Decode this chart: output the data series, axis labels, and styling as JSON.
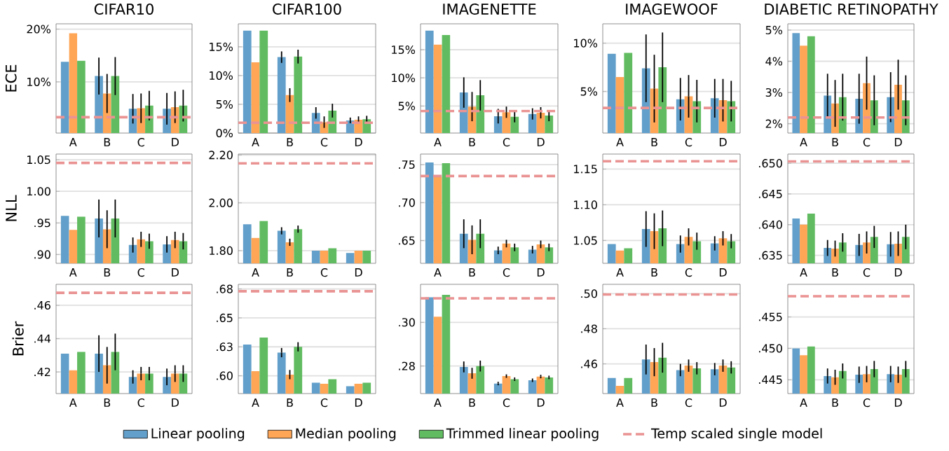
{
  "chart_data": [
    {
      "type": "bar",
      "title": "CIFAR10",
      "ylabel": "ECE",
      "categories": [
        "A",
        "B",
        "C",
        "D"
      ],
      "ylim": [
        0.3,
        21
      ],
      "yticks": [
        {
          "value": 10,
          "label": "10%"
        },
        {
          "value": 20,
          "label": "20%"
        }
      ],
      "grid": "y",
      "legend": "bottom",
      "ref_lines": [
        {
          "axis": "y",
          "value": 3.3,
          "label": "Temp scaled single model",
          "color": "#ea9393",
          "line_style": "dashed"
        }
      ],
      "series": [
        {
          "name": "Linear pooling",
          "color": "#629fca",
          "values": [
            13.8,
            11.1,
            4.9,
            4.9
          ],
          "errors": [
            null,
            3.5,
            2.8,
            3.0
          ]
        },
        {
          "name": "Median pooling",
          "color": "#ffa556",
          "values": [
            19.2,
            7.8,
            5.0,
            5.2
          ],
          "errors": [
            null,
            3.7,
            2.8,
            3.0
          ]
        },
        {
          "name": "Trimmed linear pooling",
          "color": "#61bc61",
          "values": [
            14.0,
            11.1,
            5.5,
            5.5
          ],
          "errors": [
            null,
            3.6,
            2.8,
            3.0
          ]
        }
      ]
    },
    {
      "type": "bar",
      "title": "CIFAR100",
      "categories": [
        "A",
        "B",
        "C",
        "D"
      ],
      "ylim": [
        0,
        19
      ],
      "yticks": [
        {
          "value": 0,
          "label": "0%"
        },
        {
          "value": 5,
          "label": "5%"
        },
        {
          "value": 10,
          "label": "10%"
        },
        {
          "value": 15,
          "label": "15%"
        }
      ],
      "grid": "y",
      "ref_lines": [
        {
          "axis": "y",
          "value": 1.8,
          "color": "#ea9393",
          "line_style": "dashed"
        }
      ],
      "series": [
        {
          "color": "#629fca",
          "values": [
            17.8,
            13.2,
            3.5,
            2.2
          ],
          "errors": [
            null,
            1.0,
            1.0,
            0.5
          ]
        },
        {
          "color": "#ffa556",
          "values": [
            12.3,
            6.6,
            1.9,
            2.3
          ],
          "errors": [
            null,
            1.2,
            1.0,
            0.6
          ]
        },
        {
          "color": "#61bc61",
          "values": [
            17.8,
            13.3,
            3.9,
            2.4
          ],
          "errors": [
            null,
            1.2,
            1.2,
            0.6
          ]
        }
      ]
    },
    {
      "type": "bar",
      "title": "IMAGENETTE",
      "categories": [
        "A",
        "B",
        "C",
        "D"
      ],
      "ylim": [
        0.2,
        19.6
      ],
      "yticks": [
        {
          "value": 5,
          "label": "5%"
        },
        {
          "value": 10,
          "label": "10%"
        },
        {
          "value": 15,
          "label": "15%"
        }
      ],
      "grid": "y",
      "ref_lines": [
        {
          "axis": "y",
          "value": 4.1,
          "color": "#ea9393",
          "line_style": "dashed"
        }
      ],
      "series": [
        {
          "color": "#629fca",
          "values": [
            18.4,
            7.4,
            3.2,
            3.6
          ],
          "errors": [
            null,
            2.7,
            1.3,
            1.0
          ]
        },
        {
          "color": "#ffa556",
          "values": [
            15.9,
            4.9,
            3.9,
            3.8
          ],
          "errors": [
            null,
            2.6,
            1.0,
            1.0
          ]
        },
        {
          "color": "#61bc61",
          "values": [
            17.6,
            6.9,
            3.1,
            3.3
          ],
          "errors": [
            null,
            2.7,
            1.0,
            1.0
          ]
        }
      ]
    },
    {
      "type": "bar",
      "title": "IMAGEWOOF",
      "categories": [
        "A",
        "B",
        "C",
        "D"
      ],
      "ylim": [
        0.7,
        12
      ],
      "yticks": [
        {
          "value": 5,
          "label": "5%"
        },
        {
          "value": 10,
          "label": "10%"
        }
      ],
      "grid": "y",
      "ref_lines": [
        {
          "axis": "y",
          "value": 3.3,
          "color": "#ea9393",
          "line_style": "dashed"
        }
      ],
      "series": [
        {
          "color": "#629fca",
          "values": [
            8.9,
            7.4,
            4.2,
            4.3
          ],
          "errors": [
            null,
            3.5,
            2.2,
            2.0
          ]
        },
        {
          "color": "#ffa556",
          "values": [
            6.5,
            5.3,
            4.5,
            4.1
          ],
          "errors": [
            null,
            3.5,
            2.2,
            2.2
          ]
        },
        {
          "color": "#61bc61",
          "values": [
            9.0,
            7.5,
            4.0,
            4.0
          ],
          "errors": [
            null,
            3.6,
            2.2,
            2.1
          ]
        }
      ]
    },
    {
      "type": "bar",
      "title": "DIABETIC RETINOPATHY",
      "categories": [
        "A",
        "B",
        "C",
        "D"
      ],
      "ylim": [
        1.7,
        5.2
      ],
      "yticks": [
        {
          "value": 2,
          "label": "2%"
        },
        {
          "value": 3,
          "label": "3%"
        },
        {
          "value": 4,
          "label": "4%"
        },
        {
          "value": 5,
          "label": "5%"
        }
      ],
      "grid": "y",
      "ref_lines": [
        {
          "axis": "y",
          "value": 2.2,
          "color": "#ea9393",
          "line_style": "dashed"
        }
      ],
      "series": [
        {
          "color": "#629fca",
          "values": [
            4.9,
            2.9,
            2.8,
            2.85
          ],
          "errors": [
            null,
            0.7,
            0.8,
            0.8
          ]
        },
        {
          "color": "#ffa556",
          "values": [
            4.5,
            2.65,
            3.3,
            3.25
          ],
          "errors": [
            null,
            0.75,
            0.85,
            0.8
          ]
        },
        {
          "color": "#61bc61",
          "values": [
            4.8,
            2.85,
            2.75,
            2.75
          ],
          "errors": [
            null,
            0.75,
            0.8,
            0.8
          ]
        }
      ]
    },
    {
      "type": "bar",
      "ylabel": "NLL",
      "categories": [
        "A",
        "B",
        "C",
        "D"
      ],
      "ylim": [
        0.886,
        1.059
      ],
      "yticks": [
        {
          "value": 0.9,
          "label": ".90"
        },
        {
          "value": 0.95,
          "label": ".95"
        },
        {
          "value": 1.0,
          "label": "1.00"
        },
        {
          "value": 1.05,
          "label": "1.05"
        }
      ],
      "grid": "y",
      "ref_lines": [
        {
          "axis": "y",
          "value": 1.045,
          "color": "#ea9393",
          "line_style": "dashed"
        }
      ],
      "series": [
        {
          "color": "#629fca",
          "values": [
            0.961,
            0.957,
            0.915,
            0.916
          ],
          "errors": [
            null,
            0.03,
            0.012,
            0.013
          ]
        },
        {
          "color": "#ffa556",
          "values": [
            0.939,
            0.94,
            0.924,
            0.923
          ],
          "errors": [
            null,
            0.03,
            0.012,
            0.013
          ]
        },
        {
          "color": "#61bc61",
          "values": [
            0.96,
            0.957,
            0.921,
            0.921
          ],
          "errors": [
            null,
            0.03,
            0.012,
            0.013
          ]
        }
      ]
    },
    {
      "type": "bar",
      "categories": [
        "A",
        "B",
        "C",
        "D"
      ],
      "ylim": [
        1.747,
        2.204
      ],
      "yticks": [
        {
          "value": 1.8,
          "label": "1.80"
        },
        {
          "value": 2.0,
          "label": "2.00"
        },
        {
          "value": 2.2,
          "label": "2.20"
        }
      ],
      "grid": "y",
      "ref_lines": [
        {
          "axis": "y",
          "value": 2.165,
          "color": "#ea9393",
          "line_style": "dashed"
        }
      ],
      "series": [
        {
          "color": "#629fca",
          "values": [
            1.91,
            1.883,
            1.8,
            1.79
          ],
          "errors": [
            null,
            0.015,
            null,
            null
          ]
        },
        {
          "color": "#ffa556",
          "values": [
            1.853,
            1.835,
            1.8,
            1.8
          ],
          "errors": [
            null,
            0.015,
            null,
            null
          ]
        },
        {
          "color": "#61bc61",
          "values": [
            1.924,
            1.89,
            1.81,
            1.8
          ],
          "errors": [
            null,
            0.015,
            null,
            null
          ]
        }
      ]
    },
    {
      "type": "bar",
      "categories": [
        "A",
        "B",
        "C",
        "D"
      ],
      "ylim": [
        0.62,
        0.764
      ],
      "yticks": [
        {
          "value": 0.65,
          "label": ".65"
        },
        {
          "value": 0.7,
          "label": ".70"
        },
        {
          "value": 0.75,
          "label": ".75"
        }
      ],
      "grid": "y",
      "ref_lines": [
        {
          "axis": "y",
          "value": 0.735,
          "color": "#ea9393",
          "line_style": "dashed"
        }
      ],
      "series": [
        {
          "color": "#629fca",
          "values": [
            0.753,
            0.659,
            0.637,
            0.638
          ],
          "errors": [
            null,
            0.019,
            0.005,
            0.005
          ]
        },
        {
          "color": "#ffa556",
          "values": [
            0.734,
            0.651,
            0.646,
            0.645
          ],
          "errors": [
            null,
            0.019,
            0.005,
            0.005
          ]
        },
        {
          "color": "#61bc61",
          "values": [
            0.752,
            0.659,
            0.641,
            0.641
          ],
          "errors": [
            null,
            0.019,
            0.005,
            0.005
          ]
        }
      ]
    },
    {
      "type": "bar",
      "categories": [
        "A",
        "B",
        "C",
        "D"
      ],
      "ylim": [
        1.018,
        1.171
      ],
      "yticks": [
        {
          "value": 1.05,
          "label": "1.05"
        },
        {
          "value": 1.1,
          "label": "1.10"
        },
        {
          "value": 1.15,
          "label": "1.15"
        }
      ],
      "grid": "y",
      "ref_lines": [
        {
          "axis": "y",
          "value": 1.161,
          "color": "#ea9393",
          "line_style": "dashed"
        }
      ],
      "series": [
        {
          "color": "#629fca",
          "values": [
            1.045,
            1.066,
            1.045,
            1.046
          ],
          "errors": [
            null,
            0.025,
            0.012,
            0.01
          ]
        },
        {
          "color": "#ffa556",
          "values": [
            1.036,
            1.063,
            1.055,
            1.053
          ],
          "errors": [
            null,
            0.025,
            0.012,
            0.01
          ]
        },
        {
          "color": "#61bc61",
          "values": [
            1.039,
            1.067,
            1.049,
            1.049
          ],
          "errors": [
            null,
            0.025,
            0.012,
            0.01
          ]
        }
      ]
    },
    {
      "type": "bar",
      "categories": [
        "A",
        "B",
        "C",
        "D"
      ],
      "ylim": [
        0.6337,
        0.6515
      ],
      "yticks": [
        {
          "value": 0.635,
          "label": ".635"
        },
        {
          "value": 0.64,
          "label": ".640"
        },
        {
          "value": 0.645,
          "label": ".645"
        },
        {
          "value": 0.65,
          "label": ".650"
        }
      ],
      "grid": "y",
      "ref_lines": [
        {
          "axis": "y",
          "value": 0.6503,
          "color": "#ea9393",
          "line_style": "dashed"
        }
      ],
      "series": [
        {
          "color": "#629fca",
          "values": [
            0.641,
            0.6362,
            0.6367,
            0.6368
          ],
          "errors": [
            null,
            0.0013,
            0.0018,
            0.002
          ]
        },
        {
          "color": "#ffa556",
          "values": [
            0.64,
            0.6361,
            0.6371,
            0.6369
          ],
          "errors": [
            null,
            0.0013,
            0.0018,
            0.002
          ]
        },
        {
          "color": "#61bc61",
          "values": [
            0.6418,
            0.6371,
            0.638,
            0.638
          ],
          "errors": [
            null,
            0.0015,
            0.0018,
            0.002
          ]
        }
      ]
    },
    {
      "type": "bar",
      "ylabel": "Brier",
      "categories": [
        "A",
        "B",
        "C",
        "D"
      ],
      "ylim": [
        0.407,
        0.4726
      ],
      "yticks": [
        {
          "value": 0.42,
          "label": ".42"
        },
        {
          "value": 0.44,
          "label": ".44"
        },
        {
          "value": 0.46,
          "label": ".46"
        }
      ],
      "grid": "y",
      "ref_lines": [
        {
          "axis": "y",
          "value": 0.4675,
          "color": "#ea9393",
          "line_style": "dashed"
        }
      ],
      "series": [
        {
          "color": "#629fca",
          "values": [
            0.431,
            0.431,
            0.417,
            0.417
          ],
          "errors": [
            null,
            0.011,
            0.004,
            0.005
          ]
        },
        {
          "color": "#ffa556",
          "values": [
            0.421,
            0.424,
            0.419,
            0.419
          ],
          "errors": [
            null,
            0.011,
            0.004,
            0.005
          ]
        },
        {
          "color": "#61bc61",
          "values": [
            0.432,
            0.432,
            0.419,
            0.419
          ],
          "errors": [
            null,
            0.011,
            0.004,
            0.005
          ]
        }
      ]
    },
    {
      "type": "bar",
      "categories": [
        "A",
        "B",
        "C",
        "D"
      ],
      "ylim": [
        0.5846,
        0.679
      ],
      "yticks": [
        {
          "value": 0.6,
          "label": ".60"
        },
        {
          "value": 0.625,
          "label": ".63"
        },
        {
          "value": 0.65,
          "label": ".65"
        },
        {
          "value": 0.675,
          "label": ".68"
        }
      ],
      "grid": "y",
      "ref_lines": [
        {
          "axis": "y",
          "value": 0.673,
          "color": "#ea9393",
          "line_style": "dashed"
        }
      ],
      "series": [
        {
          "color": "#629fca",
          "values": [
            0.627,
            0.62,
            0.594,
            0.591
          ],
          "errors": [
            null,
            0.004,
            null,
            null
          ]
        },
        {
          "color": "#ffa556",
          "values": [
            0.604,
            0.601,
            0.593,
            0.593
          ],
          "errors": [
            null,
            0.004,
            null,
            null
          ]
        },
        {
          "color": "#61bc61",
          "values": [
            0.633,
            0.625,
            0.597,
            0.594
          ],
          "errors": [
            null,
            0.004,
            null,
            null
          ]
        }
      ]
    },
    {
      "type": "bar",
      "categories": [
        "A",
        "B",
        "C",
        "D"
      ],
      "ylim": [
        0.2674,
        0.3174
      ],
      "yticks": [
        {
          "value": 0.28,
          "label": ".28"
        },
        {
          "value": 0.3,
          "label": ".30"
        }
      ],
      "grid": "y",
      "ref_lines": [
        {
          "axis": "y",
          "value": 0.311,
          "color": "#ea9393",
          "line_style": "dashed"
        }
      ],
      "series": [
        {
          "color": "#629fca",
          "values": [
            0.3115,
            0.2796,
            0.272,
            0.2735
          ],
          "errors": [
            null,
            0.0025,
            0.0008,
            0.0008
          ]
        },
        {
          "color": "#ffa556",
          "values": [
            0.3026,
            0.2767,
            0.2754,
            0.2752
          ],
          "errors": [
            null,
            0.0025,
            0.0008,
            0.0008
          ]
        },
        {
          "color": "#61bc61",
          "values": [
            0.3126,
            0.28,
            0.274,
            0.2748
          ],
          "errors": [
            null,
            0.0025,
            0.0008,
            0.0008
          ]
        }
      ]
    },
    {
      "type": "bar",
      "categories": [
        "A",
        "B",
        "C",
        "D"
      ],
      "ylim": [
        0.4431,
        0.5053
      ],
      "yticks": [
        {
          "value": 0.46,
          "label": ".46"
        },
        {
          "value": 0.48,
          "label": ".48"
        },
        {
          "value": 0.5,
          "label": ".50"
        }
      ],
      "grid": "y",
      "ref_lines": [
        {
          "axis": "y",
          "value": 0.4995,
          "color": "#ea9393",
          "line_style": "dashed"
        }
      ],
      "series": [
        {
          "color": "#629fca",
          "values": [
            0.452,
            0.4625,
            0.4565,
            0.457
          ],
          "errors": [
            null,
            0.0085,
            0.0035,
            0.0035
          ]
        },
        {
          "color": "#ffa556",
          "values": [
            0.4475,
            0.461,
            0.459,
            0.459
          ],
          "errors": [
            null,
            0.008,
            0.0035,
            0.0035
          ]
        },
        {
          "color": "#61bc61",
          "values": [
            0.452,
            0.4635,
            0.4575,
            0.458
          ],
          "errors": [
            null,
            0.0085,
            0.0035,
            0.0035
          ]
        }
      ]
    },
    {
      "type": "bar",
      "categories": [
        "A",
        "B",
        "C",
        "D"
      ],
      "ylim": [
        0.4428,
        0.4602
      ],
      "yticks": [
        {
          "value": 0.445,
          "label": ".445"
        },
        {
          "value": 0.45,
          "label": ".450"
        },
        {
          "value": 0.455,
          "label": ".455"
        }
      ],
      "grid": "y",
      "ref_lines": [
        {
          "axis": "y",
          "value": 0.4583,
          "color": "#ea9393",
          "line_style": "dashed"
        }
      ],
      "series": [
        {
          "color": "#629fca",
          "values": [
            0.45,
            0.4456,
            0.4458,
            0.4459
          ],
          "errors": [
            null,
            0.0012,
            0.0013,
            0.0013
          ]
        },
        {
          "color": "#ffa556",
          "values": [
            0.4489,
            0.4454,
            0.4459,
            0.4458
          ],
          "errors": [
            null,
            0.0012,
            0.0013,
            0.0013
          ]
        },
        {
          "color": "#61bc61",
          "values": [
            0.4503,
            0.4464,
            0.4467,
            0.4467
          ],
          "errors": [
            null,
            0.0012,
            0.0013,
            0.0013
          ]
        }
      ]
    }
  ]
}
